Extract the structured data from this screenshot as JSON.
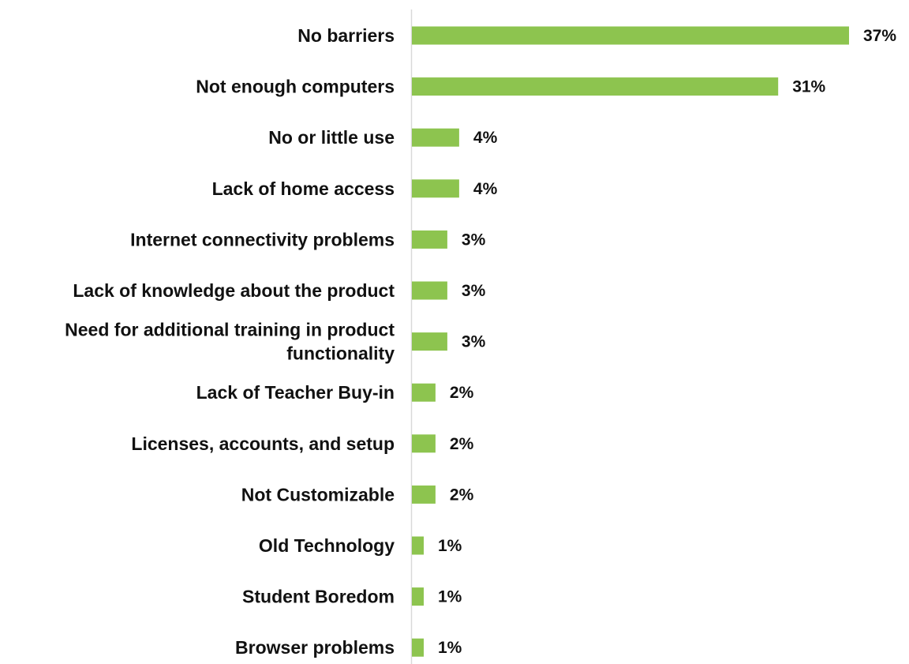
{
  "chart_data": {
    "type": "bar",
    "orientation": "horizontal",
    "categories": [
      [
        "No barriers"
      ],
      [
        "Not enough computers"
      ],
      [
        "No or little use"
      ],
      [
        "Lack of home access"
      ],
      [
        "Internet connectivity problems"
      ],
      [
        "Lack of knowledge about the product"
      ],
      [
        "Need for additional training in product",
        "functionality"
      ],
      [
        "Lack of Teacher Buy-in"
      ],
      [
        "Licenses, accounts, and setup"
      ],
      [
        "Not Customizable"
      ],
      [
        "Old Technology"
      ],
      [
        "Student Boredom"
      ],
      [
        "Browser problems"
      ]
    ],
    "values": [
      37,
      31,
      4,
      4,
      3,
      3,
      3,
      2,
      2,
      2,
      1,
      1,
      1
    ],
    "value_labels": [
      "37%",
      "31%",
      "4%",
      "4%",
      "3%",
      "3%",
      "3%",
      "2%",
      "2%",
      "2%",
      "1%",
      "1%",
      "1%"
    ],
    "unit": "%",
    "title": "",
    "xlabel": "",
    "ylabel": "",
    "xlim": [
      0,
      37
    ],
    "grid": false,
    "legend": "none",
    "colors": {
      "bar": "#8DC44F",
      "axis": "#D9D9D9",
      "text": "#111111"
    }
  }
}
